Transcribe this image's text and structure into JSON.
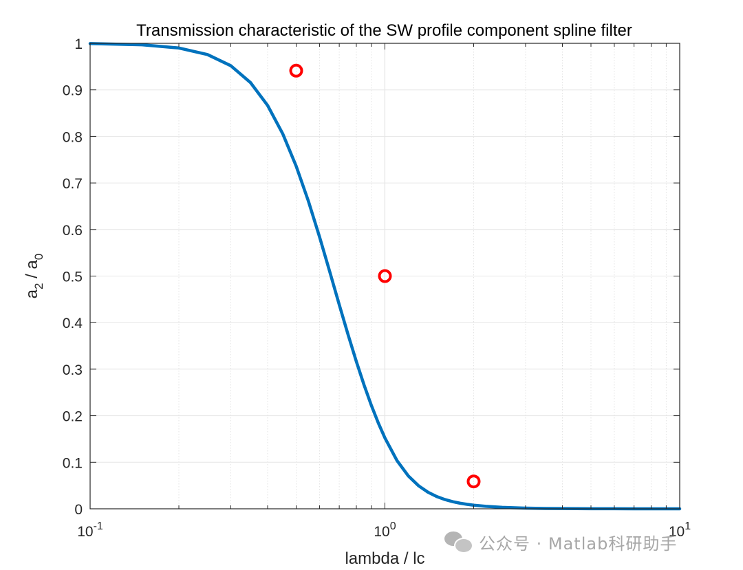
{
  "chart_data": {
    "type": "line",
    "title": "Transmission characteristic of the SW profile component spline filter",
    "xlabel": "lambda / lc",
    "ylabel": "a_2 / a_0",
    "ylabel_parts": {
      "base1": "a",
      "sub1": "2",
      "sep": " / ",
      "base2": "a",
      "sub2": "0"
    },
    "xscale": "log",
    "xlim": [
      0.1,
      10
    ],
    "ylim": [
      0,
      1
    ],
    "xticks": [
      {
        "value": 0.1,
        "base": "10",
        "exp": "-1"
      },
      {
        "value": 1,
        "base": "10",
        "exp": "0"
      },
      {
        "value": 10,
        "base": "10",
        "exp": "1"
      }
    ],
    "yticks": [
      "0",
      "0.1",
      "0.2",
      "0.3",
      "0.4",
      "0.5",
      "0.6",
      "0.7",
      "0.8",
      "0.9",
      "1"
    ],
    "grid": true,
    "minor_grid_x": true,
    "series": [
      {
        "style": "line",
        "color": "#0072bd",
        "x": [
          0.1,
          0.15,
          0.2,
          0.25,
          0.3,
          0.35,
          0.4,
          0.45,
          0.5,
          0.55,
          0.6,
          0.65,
          0.7,
          0.75,
          0.8,
          0.85,
          0.9,
          0.95,
          1.0,
          1.1,
          1.2,
          1.3,
          1.4,
          1.5,
          1.6,
          1.7,
          1.8,
          1.9,
          2.0,
          2.2,
          2.5,
          3.0,
          3.5,
          4.0,
          5.0,
          6.0,
          7.0,
          8.0,
          10.0
        ],
        "y": [
          0.9994,
          0.9968,
          0.99,
          0.9759,
          0.9519,
          0.9156,
          0.8666,
          0.8059,
          0.7362,
          0.6611,
          0.5843,
          0.5093,
          0.4386,
          0.3741,
          0.3164,
          0.2657,
          0.2218,
          0.1842,
          0.1523,
          0.1032,
          0.0708,
          0.0496,
          0.0356,
          0.0262,
          0.0198,
          0.0153,
          0.012,
          0.0096,
          0.0078,
          0.0053,
          0.0032,
          0.0015,
          0.0008,
          0.0005,
          0.0002,
          0.0001,
          0.0,
          0.0,
          0.0
        ]
      },
      {
        "style": "markers",
        "marker": "circle",
        "color": "#ff0000",
        "x": [
          0.5,
          1.0,
          2.0
        ],
        "y": [
          0.9412,
          0.5,
          0.0588
        ]
      }
    ]
  },
  "watermark": {
    "text": "公众号 · Matlab科研助手",
    "icon": "wechat-icon"
  }
}
